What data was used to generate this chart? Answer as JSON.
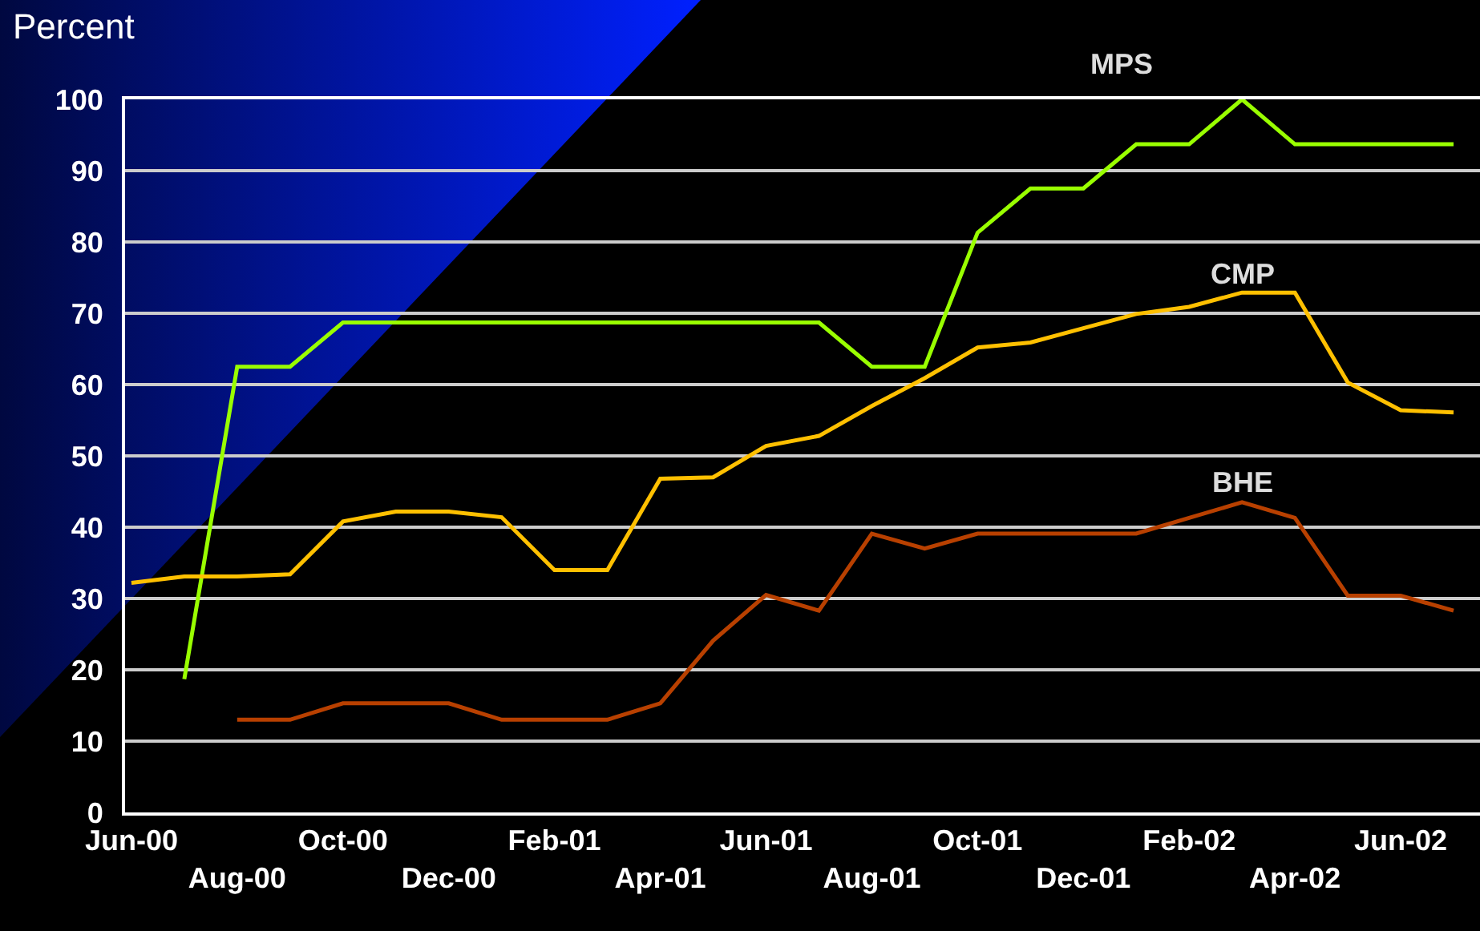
{
  "chart_data": {
    "type": "line",
    "ylabel": "Percent",
    "categories": [
      "Jun-00",
      null,
      "Aug-00",
      null,
      "Oct-00",
      null,
      "Dec-00",
      null,
      "Feb-01",
      null,
      "Apr-01",
      null,
      "Jun-01",
      null,
      "Aug-01",
      null,
      "Oct-01",
      null,
      "Dec-01",
      null,
      "Feb-02",
      null,
      "Apr-02",
      null,
      "Jun-02",
      null
    ],
    "series": [
      {
        "name": "MPS",
        "color": "#99ff00",
        "values": [
          null,
          18.7,
          62.5,
          62.5,
          68.7,
          68.7,
          68.7,
          68.7,
          68.7,
          68.7,
          68.7,
          68.7,
          68.7,
          68.7,
          62.5,
          62.5,
          81.3,
          87.5,
          87.5,
          93.7,
          93.7,
          100,
          93.7,
          93.7,
          93.7,
          93.7
        ]
      },
      {
        "name": "CMP",
        "color": "#ffc000",
        "values": [
          32.2,
          33.1,
          33.1,
          33.4,
          40.8,
          42.2,
          42.2,
          41.4,
          34.0,
          34.0,
          46.8,
          47.0,
          51.4,
          52.8,
          57.0,
          60.9,
          65.2,
          65.9,
          67.9,
          69.9,
          70.9,
          72.9,
          72.9,
          60.3,
          56.4,
          56.1
        ]
      },
      {
        "name": "BHE",
        "color": "#b84000",
        "values": [
          null,
          null,
          13.0,
          13.0,
          15.3,
          15.3,
          15.3,
          13.0,
          13.0,
          13.0,
          15.3,
          24.1,
          30.5,
          28.3,
          39.1,
          37.0,
          39.1,
          39.1,
          39.1,
          39.1,
          41.3,
          43.5,
          41.3,
          30.4,
          30.4,
          28.3
        ]
      }
    ],
    "ylim": [
      0,
      100
    ],
    "yticks": [
      0,
      10,
      20,
      30,
      40,
      50,
      60,
      70,
      80,
      90,
      100
    ],
    "grid": "y",
    "legend": false,
    "marker": "none",
    "line_style": "solid"
  }
}
